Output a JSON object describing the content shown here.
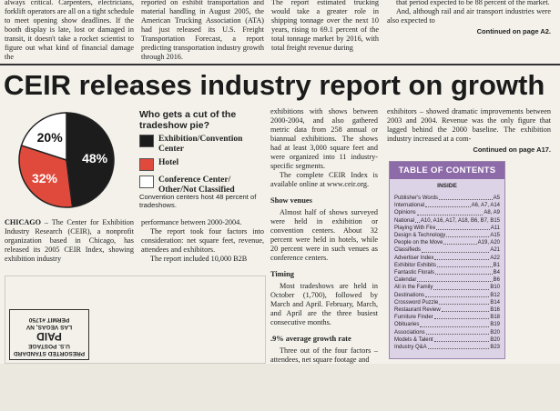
{
  "top_columns": [
    [
      "always critical. Carpenters, electricians, forklift operators are all on a tight schedule to meet opening show deadlines. If the booth display is late, lost or damaged in transit, it doesn't take a rocket scientist to figure out what kind of financial damage the"
    ],
    [
      "reported on exhibit transportation and material handling in August 2005, the American Trucking Association (ATA) had just released its U.S. Freight Transportation Forecast, a report predicting transportation industry growth through 2016."
    ],
    [
      "The report estimated trucking would take a greater role in shipping tonnage over the next 10 years, rising to 69.1 percent of the total tonnage market by 2016, with total freight revenue during"
    ],
    [
      "that period expected to be 88 percent of the market.",
      "And, although rail and air transport industries were also expected to"
    ]
  ],
  "top_continued": "Continued on page A2.",
  "headline": "CEIR releases industry report on growth",
  "pie": {
    "type": "pie",
    "title": "Who gets a cut of the tradeshow pie?",
    "slices": [
      {
        "name": "Exhibition/Convention Center",
        "value": 48,
        "value_label": "48%",
        "color": "#1c1c1c"
      },
      {
        "name": "Hotel",
        "value": 32,
        "value_label": "32%",
        "color": "#e04a3c"
      },
      {
        "name": "Conference Center/ Other/Not Classified",
        "value": 20,
        "value_label": "20%",
        "color": "#ffffff"
      }
    ],
    "caption": "Convention centers host 48 percent of tradeshows."
  },
  "article": {
    "columns": [
      [
        {
          "dateline": "CHICAGO",
          "text": "– The Center for Exhibition Industry Research (CEIR), a nonprofit organization based in Chicago, has released its 2005 CEIR Index, showing exhibition industry"
        }
      ],
      [
        "performance between 2000-2004.",
        "The report took four factors into consideration: net square feet, revenue, attendees and exhibitors.",
        "The report included 10,000 B2B"
      ],
      [
        "exhibitions with shows between 2000-2004, and also gathered metric data from 258 annual or biannual exhibitions. The shows had at least 3,000 square feet and were organized into 11 industry-specific segments.",
        "The complete CEIR Index is available online at www.ceir.org.",
        {
          "subhead": "Show venues"
        },
        "Almost half of shows surveyed were held in exhibition or convention centers. About 32 percent were held in hotels, while 20 percent were in such venues as conference centers.",
        {
          "subhead": "Timing"
        },
        "Most tradeshows are held in October (1,700), followed by March and April. February, March, and April are the three busiest consecutive months.",
        {
          "subhead": ".9% average growth rate"
        },
        "Three out of the four factors – attendees, net square footage and"
      ],
      [
        "exhibitors – showed dramatic improvements between 2003 and 2004. Revenue was the only figure that lagged behind the 2000 baseline. The exhibition industry increased at a com-"
      ]
    ],
    "continued": "Continued on page A17."
  },
  "toc": {
    "title": "TABLE OF CONTENTS",
    "subtitle": "INSIDE",
    "entries": [
      {
        "name": "Publisher's Words",
        "pages": "A5"
      },
      {
        "name": "International",
        "pages": "A6, A7, A14"
      },
      {
        "name": "Opinions",
        "pages": "A8, A9"
      },
      {
        "name": "National",
        "pages": "A10, A16, A17, A18, B6, B7, B15"
      },
      {
        "name": "Playing With Fire",
        "pages": "A11"
      },
      {
        "name": "Design & Technology",
        "pages": "A15"
      },
      {
        "name": "People on the Move",
        "pages": "A19, A20"
      },
      {
        "name": "Classifieds",
        "pages": "A21"
      },
      {
        "name": "Advertiser Index",
        "pages": "A22"
      },
      {
        "name": "Exhibitor Exhibits",
        "pages": "B1"
      },
      {
        "name": "Fantastic Florals",
        "pages": "B4"
      },
      {
        "name": "Calendar",
        "pages": "B6"
      },
      {
        "name": "All in the Family",
        "pages": "B10"
      },
      {
        "name": "Destinations",
        "pages": "B12"
      },
      {
        "name": "Crossword Puzzle",
        "pages": "B14"
      },
      {
        "name": "Restaurant Review",
        "pages": "B16"
      },
      {
        "name": "Furniture Finder",
        "pages": "B18"
      },
      {
        "name": "Obituaries",
        "pages": "B19"
      },
      {
        "name": "Associations",
        "pages": "B20"
      },
      {
        "name": "Models & Talent",
        "pages": "B20"
      },
      {
        "name": "Industry Q&A",
        "pages": "B23"
      }
    ]
  },
  "postage": [
    "PRESORTED STANDARD",
    "U.S. POSTAGE",
    "PAID",
    "LAS VEGAS, NV",
    "PERMIT #1750"
  ]
}
